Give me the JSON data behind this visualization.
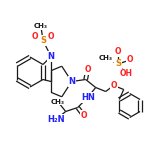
{
  "background_color": "#ffffff",
  "bond_color": "#1a1a1a",
  "atom_colors": {
    "N": "#2020ff",
    "O": "#ff2020",
    "S": "#e08000",
    "C": "#1a1a1a"
  },
  "lw": 0.9,
  "fs": 5.5,
  "xlim": [
    0,
    152
  ],
  "ylim": [
    0,
    152
  ]
}
